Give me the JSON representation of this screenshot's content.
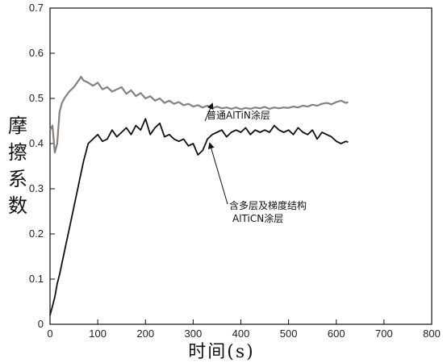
{
  "chart_data": {
    "type": "line",
    "xlabel": "时间(s)",
    "ylabel": "摩擦系数",
    "xlim": [
      0,
      800
    ],
    "ylim": [
      0,
      0.7
    ],
    "xticks": [
      "0",
      "100",
      "200",
      "300",
      "400",
      "500",
      "600",
      "700",
      "800"
    ],
    "yticks": [
      "0",
      "0.1",
      "0.2",
      "0.3",
      "0.4",
      "0.5",
      "0.6",
      "0.7"
    ],
    "grid": false,
    "series": [
      {
        "name": "普通AlTiN涂层",
        "color": "#8a7f7f",
        "x": [
          0,
          5,
          10,
          15,
          20,
          25,
          30,
          40,
          50,
          60,
          65,
          70,
          80,
          90,
          100,
          110,
          120,
          130,
          140,
          150,
          160,
          170,
          180,
          190,
          200,
          210,
          220,
          230,
          240,
          250,
          260,
          270,
          280,
          290,
          300,
          310,
          320,
          330,
          340,
          350,
          360,
          370,
          380,
          390,
          400,
          410,
          420,
          430,
          440,
          450,
          460,
          470,
          480,
          490,
          500,
          510,
          520,
          530,
          540,
          550,
          560,
          570,
          580,
          590,
          600,
          610,
          620,
          625
        ],
        "y": [
          0.43,
          0.44,
          0.38,
          0.4,
          0.47,
          0.49,
          0.5,
          0.515,
          0.525,
          0.54,
          0.548,
          0.54,
          0.535,
          0.528,
          0.535,
          0.52,
          0.525,
          0.515,
          0.52,
          0.525,
          0.51,
          0.518,
          0.505,
          0.512,
          0.5,
          0.505,
          0.495,
          0.5,
          0.49,
          0.495,
          0.488,
          0.492,
          0.485,
          0.488,
          0.482,
          0.485,
          0.48,
          0.484,
          0.478,
          0.482,
          0.478,
          0.48,
          0.477,
          0.48,
          0.476,
          0.479,
          0.477,
          0.48,
          0.478,
          0.481,
          0.477,
          0.48,
          0.478,
          0.48,
          0.479,
          0.482,
          0.48,
          0.484,
          0.482,
          0.486,
          0.484,
          0.488,
          0.49,
          0.487,
          0.492,
          0.495,
          0.49,
          0.492
        ]
      },
      {
        "name": "含多层及梯度结构AlTiCN涂层",
        "color": "#111111",
        "x": [
          0,
          5,
          10,
          15,
          20,
          30,
          40,
          50,
          60,
          70,
          80,
          90,
          100,
          110,
          120,
          130,
          140,
          150,
          160,
          170,
          180,
          190,
          200,
          210,
          220,
          230,
          240,
          250,
          260,
          270,
          280,
          290,
          300,
          310,
          320,
          330,
          340,
          350,
          360,
          370,
          380,
          390,
          400,
          410,
          420,
          430,
          440,
          450,
          460,
          470,
          480,
          490,
          500,
          510,
          520,
          530,
          540,
          550,
          560,
          570,
          580,
          590,
          600,
          610,
          620,
          625
        ],
        "y": [
          0.02,
          0.04,
          0.06,
          0.09,
          0.11,
          0.16,
          0.21,
          0.26,
          0.31,
          0.36,
          0.4,
          0.41,
          0.42,
          0.405,
          0.41,
          0.43,
          0.415,
          0.425,
          0.435,
          0.42,
          0.44,
          0.43,
          0.455,
          0.42,
          0.435,
          0.445,
          0.415,
          0.42,
          0.41,
          0.405,
          0.41,
          0.395,
          0.4,
          0.375,
          0.385,
          0.41,
          0.42,
          0.425,
          0.43,
          0.415,
          0.425,
          0.43,
          0.425,
          0.435,
          0.42,
          0.43,
          0.425,
          0.43,
          0.425,
          0.44,
          0.43,
          0.425,
          0.43,
          0.42,
          0.435,
          0.425,
          0.42,
          0.43,
          0.41,
          0.425,
          0.42,
          0.415,
          0.405,
          0.4,
          0.405,
          0.403
        ]
      }
    ],
    "annotations": [
      {
        "text": "普通AlTiN涂层",
        "series": 0,
        "arrow_to": [
          340,
          0.482
        ]
      },
      {
        "text": "含多层及梯度结构",
        "series": 1,
        "arrow_to": [
          335,
          0.405
        ]
      },
      {
        "text": "AlTiCN涂层",
        "series": 1
      }
    ]
  }
}
